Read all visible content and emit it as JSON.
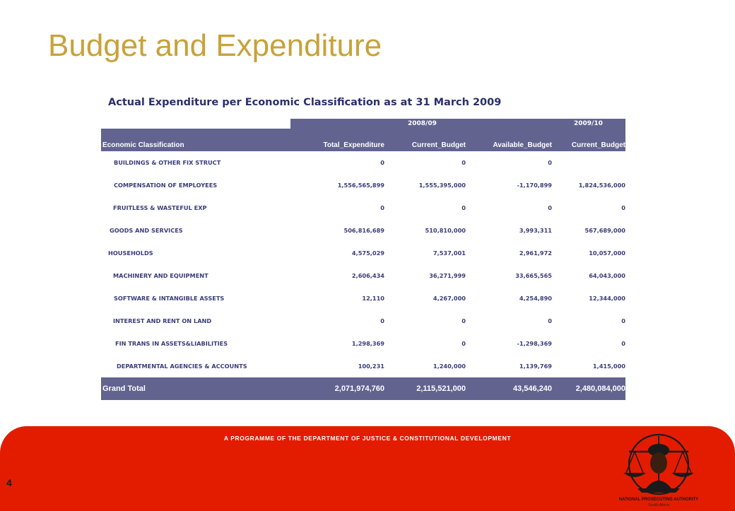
{
  "slide": {
    "title": "Budget and Expenditure",
    "subtitle": "Actual Expenditure per Economic Classification as at 31 March 2009",
    "page_number": "4"
  },
  "table": {
    "year_headers": [
      "2008/09",
      "2009/10"
    ],
    "columns": [
      "Economic Classification",
      "Total_Expenditure",
      "Current_Budget",
      "Available_Budget",
      "Current_Budget"
    ],
    "rows": [
      [
        "BUILDINGS & OTHER FIX STRUCT",
        "0",
        "0",
        "0",
        ""
      ],
      [
        "COMPENSATION OF EMPLOYEES",
        "1,556,565,899",
        "1,555,395,000",
        "-1,170,899",
        "1,824,536,000"
      ],
      [
        "FRUITLESS & WASTEFUL EXP",
        "0",
        "0",
        "0",
        "0"
      ],
      [
        "GOODS AND SERVICES",
        "506,816,689",
        "510,810,000",
        "3,993,311",
        "567,689,000"
      ],
      [
        "HOUSEHOLDS",
        "4,575,029",
        "7,537,001",
        "2,961,972",
        "10,057,000"
      ],
      [
        "MACHINERY AND EQUIPMENT",
        "2,606,434",
        "36,271,999",
        "33,665,565",
        "64,043,000"
      ],
      [
        "SOFTWARE & INTANGIBLE ASSETS",
        "12,110",
        "4,267,000",
        "4,254,890",
        "12,344,000"
      ],
      [
        "INTEREST AND RENT ON LAND",
        "0",
        "0",
        "0",
        "0"
      ],
      [
        "FIN TRANS IN ASSETS&LIABILITIES",
        "1,298,369",
        "0",
        "-1,298,369",
        "0"
      ],
      [
        "DEPARTMENTAL AGENCIES & ACCOUNTS",
        "100,231",
        "1,240,000",
        "1,139,769",
        "1,415,000"
      ]
    ],
    "total": [
      "Grand Total",
      "2,071,974,760",
      "2,115,521,000",
      "43,546,240",
      "2,480,084,000"
    ]
  },
  "footer": {
    "tagline": "A PROGRAMME OF THE DEPARTMENT OF JUSTICE & CONSTITUTIONAL DEVELOPMENT",
    "logo_line1": "NATIONAL PROSECUTING AUTHORITY",
    "logo_line2": "South Africa",
    "background_color": "#e31c00"
  }
}
